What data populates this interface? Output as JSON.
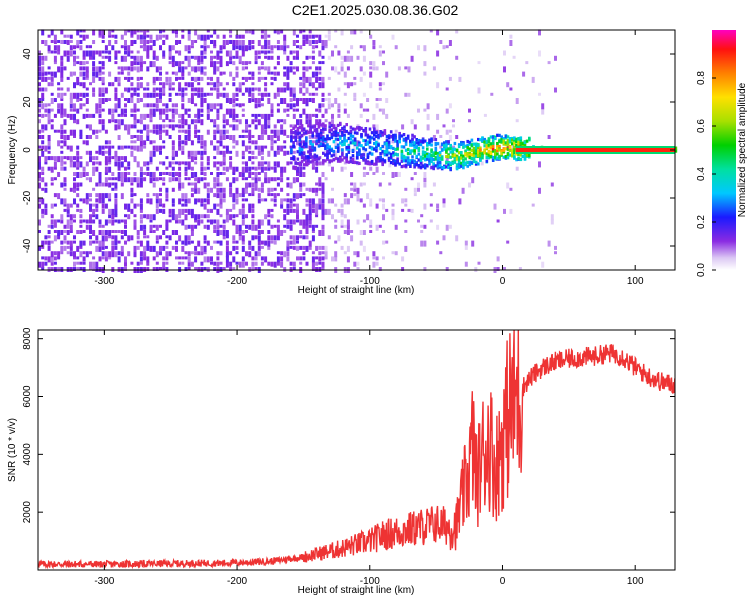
{
  "title": "C2E1.2025.030.08.36.G02",
  "chart_data": [
    {
      "type": "heatmap",
      "xlabel": "Height of straight line (km)",
      "ylabel": "Frequency (Hz)",
      "xlim": [
        -350,
        130
      ],
      "ylim": [
        -50,
        50
      ],
      "x_ticks": [
        -300,
        -200,
        -100,
        0,
        100
      ],
      "y_ticks": [
        -40,
        -20,
        0,
        20,
        40
      ],
      "colorbar": {
        "label": "Normalized spectral amplitude",
        "range": [
          0,
          1
        ],
        "ticks": [
          "0.0",
          "0.2",
          "0.4",
          "0.6",
          "0.8"
        ]
      },
      "ridge": [
        {
          "x": -155,
          "y": 1.0,
          "amp": 0.3
        },
        {
          "x": -140,
          "y": 2.5,
          "amp": 0.32
        },
        {
          "x": -125,
          "y": 3.0,
          "amp": 0.35
        },
        {
          "x": -110,
          "y": 2.0,
          "amp": 0.38
        },
        {
          "x": -95,
          "y": 1.0,
          "amp": 0.4
        },
        {
          "x": -80,
          "y": 0.0,
          "amp": 0.45
        },
        {
          "x": -65,
          "y": -1.0,
          "amp": 0.5
        },
        {
          "x": -50,
          "y": -2.0,
          "amp": 0.55
        },
        {
          "x": -35,
          "y": -3.0,
          "amp": 0.7
        },
        {
          "x": -20,
          "y": -1.0,
          "amp": 0.8
        },
        {
          "x": -5,
          "y": 1.0,
          "amp": 0.9
        },
        {
          "x": 10,
          "y": 0.5,
          "amp": 0.95
        },
        {
          "x": 50,
          "y": 0.0,
          "amp": 0.98
        },
        {
          "x": 130,
          "y": 0.0,
          "amp": 1.0
        }
      ]
    },
    {
      "type": "line",
      "xlabel": "Height of straight line (km)",
      "ylabel": "SNR (10 * v/v)",
      "xlim": [
        -350,
        130
      ],
      "ylim": [
        0,
        8300
      ],
      "x_ticks": [
        -300,
        -200,
        -100,
        0,
        100
      ],
      "y_ticks": [
        2000,
        4000,
        6000,
        8000
      ],
      "color": "#ee3333",
      "series": [
        {
          "x": [
            -350,
            -300,
            -250,
            -200,
            -175,
            -150,
            -125,
            -100,
            -90,
            -80,
            -70,
            -60,
            -50,
            -40,
            -35,
            -30,
            -25,
            -22,
            -20,
            -15,
            -10,
            -5,
            0,
            5,
            10,
            15,
            20,
            25,
            30,
            35,
            40,
            50,
            60,
            70,
            80,
            90,
            100,
            110,
            120,
            130
          ],
          "y": [
            200,
            200,
            220,
            250,
            300,
            450,
            700,
            1000,
            1200,
            1300,
            1400,
            1500,
            1600,
            1500,
            1500,
            2500,
            3500,
            4500,
            3000,
            4000,
            4500,
            3500,
            4500,
            5500,
            6000,
            6300,
            6600,
            6800,
            7000,
            7100,
            7200,
            7300,
            7350,
            7400,
            7500,
            7400,
            7000,
            6700,
            6500,
            6400
          ]
        }
      ]
    }
  ]
}
